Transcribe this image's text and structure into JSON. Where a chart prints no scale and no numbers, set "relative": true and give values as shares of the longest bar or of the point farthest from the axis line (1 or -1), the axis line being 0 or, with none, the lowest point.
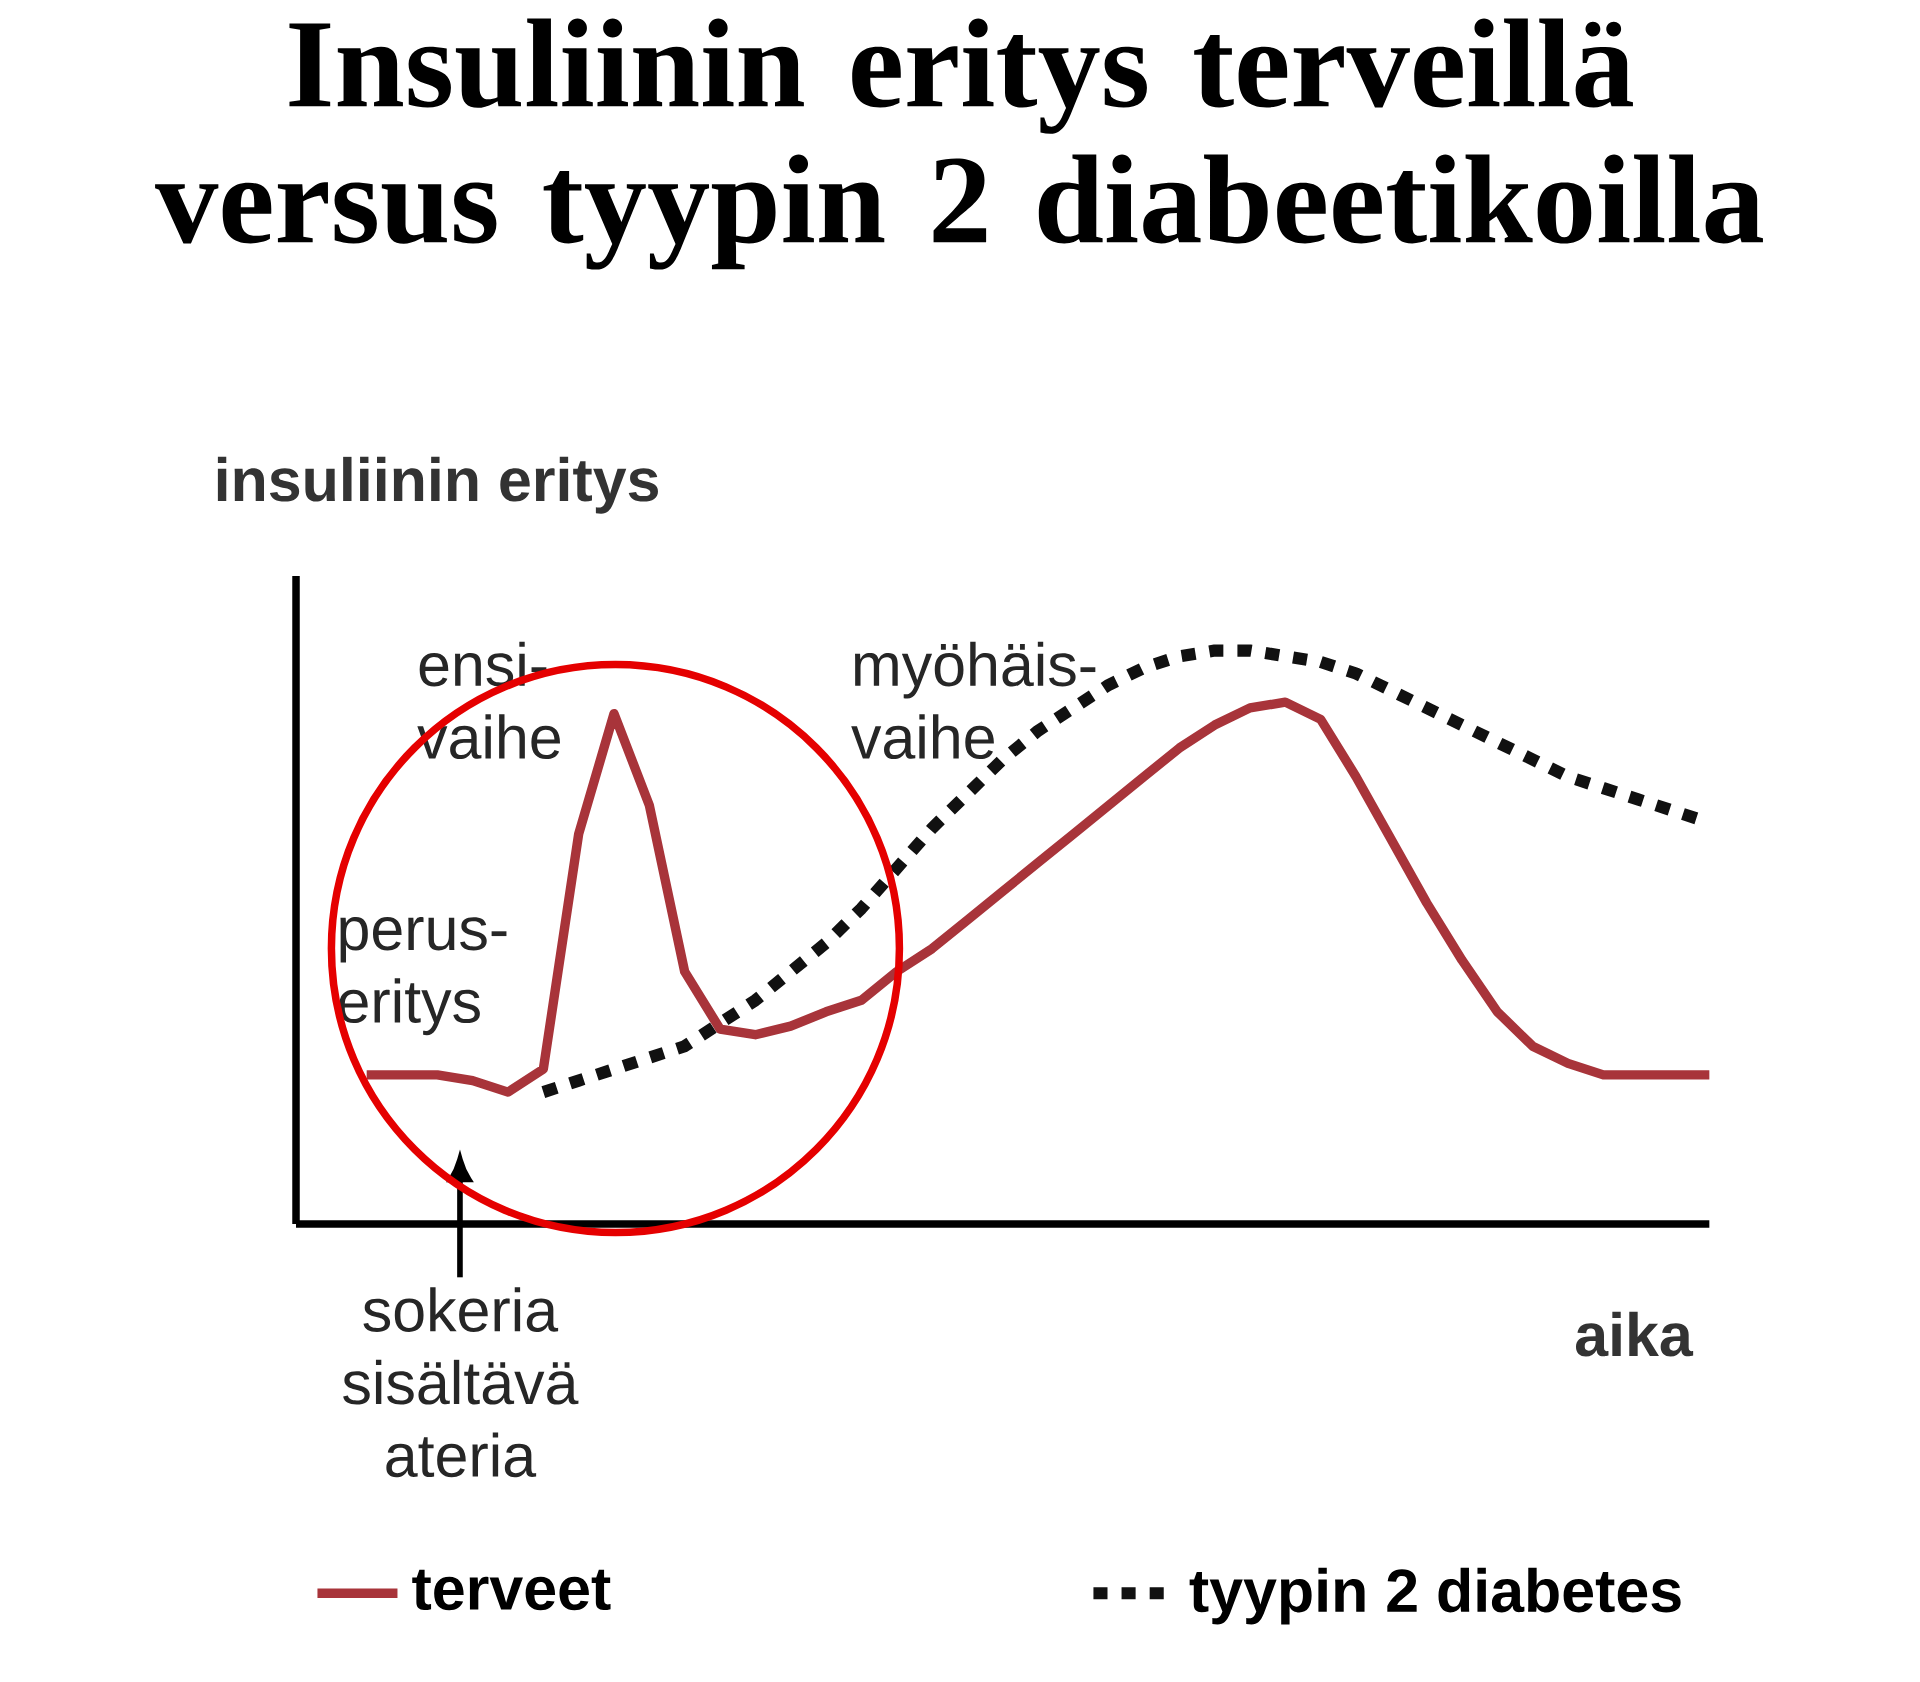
{
  "chart_data": {
    "type": "line",
    "relative": true,
    "title": "Insuliinin eritys terveillä versus tyypin 2 diabeetikoilla",
    "ylabel": "insuliinin eritys",
    "xlabel": "aika",
    "categories": [
      null,
      null,
      null,
      null,
      null,
      null,
      null,
      null,
      null,
      null,
      null,
      null,
      null,
      null,
      null,
      null,
      null,
      null,
      null,
      null,
      null,
      null,
      null,
      null,
      null,
      null,
      null,
      null,
      null,
      null,
      null,
      null,
      null,
      null,
      null,
      null,
      null,
      null,
      null,
      null,
      null
    ],
    "annotations": [
      "ensi-vaihe",
      "myöhäis-vaihe",
      "perus-eritys",
      "sokeria sisältävä ateria"
    ],
    "legend": "bottom",
    "series": [
      {
        "name": "terveet",
        "color": "#a8343a",
        "line_style": "solid",
        "values": [
          null,
          null,
          0.26,
          0.26,
          0.26,
          0.25,
          0.23,
          0.27,
          0.68,
          0.89,
          0.73,
          0.44,
          0.34,
          0.33,
          0.345,
          0.37,
          0.39,
          0.44,
          0.48,
          0.53,
          0.58,
          0.63,
          0.68,
          0.73,
          0.78,
          0.83,
          0.87,
          0.9,
          0.91,
          0.88,
          0.78,
          0.67,
          0.56,
          0.46,
          0.37,
          0.31,
          0.28,
          0.26,
          0.26,
          0.26,
          0.26
        ]
      },
      {
        "name": "tyypin 2 diabetes",
        "color": "#111111",
        "line_style": "dotted",
        "values": [
          null,
          null,
          null,
          null,
          null,
          null,
          null,
          0.23,
          0.25,
          0.27,
          0.29,
          0.31,
          0.35,
          0.39,
          0.44,
          0.49,
          0.55,
          0.62,
          0.69,
          0.75,
          0.81,
          0.86,
          0.9,
          0.94,
          0.97,
          0.99,
          1.0,
          1.0,
          0.99,
          0.98,
          0.96,
          0.93,
          0.9,
          0.87,
          0.84,
          0.81,
          0.78,
          0.76,
          0.74,
          0.72,
          0.7
        ]
      }
    ]
  }
}
